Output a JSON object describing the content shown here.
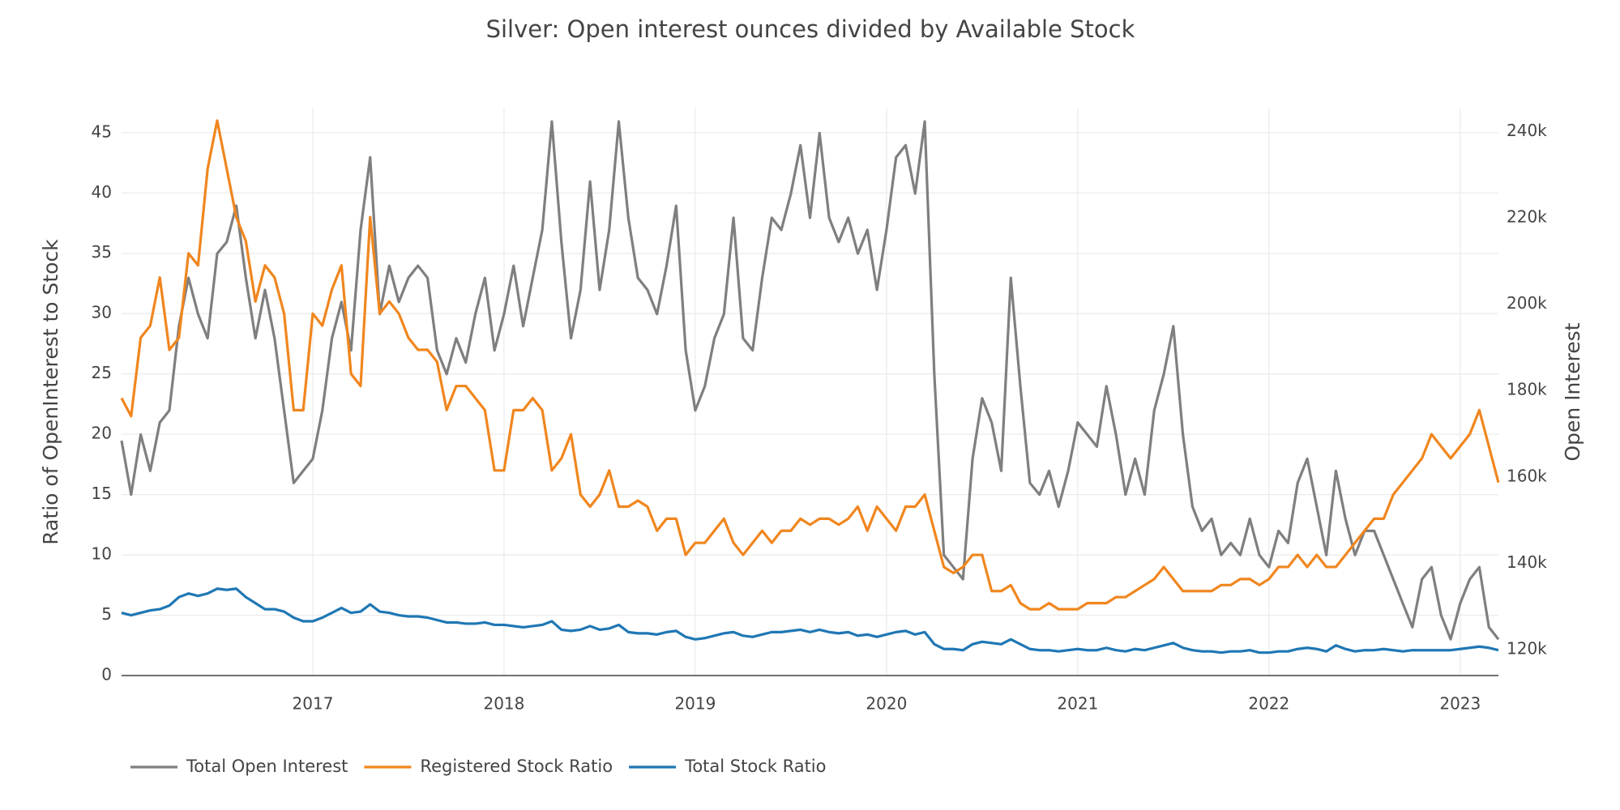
{
  "chart_data": {
    "type": "line",
    "title": "Silver: Open interest ounces divided by Available Stock",
    "ylabel": "Ratio of OpenInterest to Stock",
    "y2label": "Open Interest",
    "legend": "bottom-left",
    "grid": true,
    "xlim": [
      2016,
      2023.2
    ],
    "xticks": [
      2017,
      2018,
      2019,
      2020,
      2021,
      2022,
      2023
    ],
    "ylim": [
      0,
      47
    ],
    "yticks": [
      0,
      5,
      10,
      15,
      20,
      25,
      30,
      35,
      40,
      45
    ],
    "y2lim": [
      114000,
      245300
    ],
    "y2ticks": [
      {
        "value": 120000,
        "label": "120k"
      },
      {
        "value": 140000,
        "label": "140k"
      },
      {
        "value": 160000,
        "label": "160k"
      },
      {
        "value": 180000,
        "label": "180k"
      },
      {
        "value": 200000,
        "label": "200k"
      },
      {
        "value": 220000,
        "label": "220k"
      },
      {
        "value": 240000,
        "label": "240k"
      }
    ],
    "x": [
      2016,
      2016.05,
      2016.1,
      2016.15,
      2016.2,
      2016.25,
      2016.3,
      2016.35,
      2016.4,
      2016.45,
      2016.5,
      2016.55,
      2016.6,
      2016.65,
      2016.7,
      2016.75,
      2016.8,
      2016.85,
      2016.9,
      2016.95,
      2017,
      2017.05,
      2017.1,
      2017.15,
      2017.2,
      2017.25,
      2017.3,
      2017.35,
      2017.4,
      2017.45,
      2017.5,
      2017.55,
      2017.6,
      2017.65,
      2017.7,
      2017.75,
      2017.8,
      2017.85,
      2017.9,
      2017.95,
      2018,
      2018.05,
      2018.1,
      2018.15,
      2018.2,
      2018.25,
      2018.3,
      2018.35,
      2018.4,
      2018.45,
      2018.5,
      2018.55,
      2018.6,
      2018.65,
      2018.7,
      2018.75,
      2018.8,
      2018.85,
      2018.9,
      2018.95,
      2019,
      2019.05,
      2019.1,
      2019.15,
      2019.2,
      2019.25,
      2019.3,
      2019.35,
      2019.4,
      2019.45,
      2019.5,
      2019.55,
      2019.6,
      2019.65,
      2019.7,
      2019.75,
      2019.8,
      2019.85,
      2019.9,
      2019.95,
      2020,
      2020.05,
      2020.1,
      2020.15,
      2020.2,
      2020.25,
      2020.3,
      2020.35,
      2020.4,
      2020.45,
      2020.5,
      2020.55,
      2020.6,
      2020.65,
      2020.7,
      2020.75,
      2020.8,
      2020.85,
      2020.9,
      2020.95,
      2021,
      2021.05,
      2021.1,
      2021.15,
      2021.2,
      2021.25,
      2021.3,
      2021.35,
      2021.4,
      2021.45,
      2021.5,
      2021.55,
      2021.6,
      2021.65,
      2021.7,
      2021.75,
      2021.8,
      2021.85,
      2021.9,
      2021.95,
      2022,
      2022.05,
      2022.1,
      2022.15,
      2022.2,
      2022.25,
      2022.3,
      2022.35,
      2022.4,
      2022.45,
      2022.5,
      2022.55,
      2022.6,
      2022.65,
      2022.7,
      2022.75,
      2022.8,
      2022.85,
      2022.9,
      2022.95,
      2023,
      2023.05,
      2023.1,
      2023.15,
      2023.2
    ],
    "series": [
      {
        "name": "Total Open Interest",
        "color": "#7f7f7f",
        "axis": "y2",
        "values": [
          168400,
          155900,
          169800,
          161400,
          172600,
          175400,
          194900,
          206100,
          197700,
          192100,
          211700,
          214400,
          222800,
          206100,
          192100,
          203300,
          192100,
          175400,
          158600,
          161400,
          164200,
          175400,
          192100,
          200500,
          189300,
          217200,
          234000,
          197700,
          208900,
          200500,
          206100,
          208900,
          206100,
          189300,
          183800,
          192100,
          186500,
          197700,
          206100,
          189300,
          197700,
          208900,
          194900,
          206100,
          217200,
          242300,
          214400,
          192100,
          203300,
          228400,
          203300,
          217200,
          242300,
          220000,
          206100,
          203300,
          197700,
          208900,
          222800,
          189300,
          175400,
          181000,
          192100,
          197700,
          220000,
          192100,
          189300,
          206100,
          220000,
          217200,
          225600,
          236800,
          220000,
          239600,
          220000,
          214400,
          220000,
          211700,
          217200,
          203300,
          217200,
          234000,
          236800,
          225600,
          242300,
          183800,
          141900,
          139100,
          136300,
          164200,
          178200,
          172600,
          161400,
          206100,
          181000,
          158600,
          155900,
          161400,
          153100,
          161400,
          172600,
          169800,
          167000,
          181000,
          169800,
          155900,
          164200,
          155900,
          175400,
          183800,
          194900,
          169800,
          153100,
          147500,
          150300,
          141900,
          144700,
          141900,
          150300,
          141900,
          139100,
          147500,
          144700,
          158600,
          164200,
          153100,
          141900,
          161400,
          150300,
          141900,
          147500,
          147500,
          141900,
          136300,
          130700,
          125200,
          136300,
          139100,
          128000,
          122400,
          130700,
          136300,
          139100,
          125200,
          122400
        ]
      },
      {
        "name": "Registered Stock Ratio",
        "color": "#f0861e",
        "values": [
          23,
          21.5,
          28,
          29,
          33,
          27,
          28,
          35,
          34,
          42,
          46,
          42,
          38,
          36,
          31,
          34,
          33,
          30,
          22,
          22,
          30,
          29,
          32,
          34,
          25,
          24,
          38,
          30,
          31,
          30,
          28,
          27,
          27,
          26,
          22,
          24,
          24,
          23,
          22,
          17,
          17,
          22,
          22,
          23,
          22,
          17,
          18,
          20,
          15,
          14,
          15,
          17,
          14,
          14,
          14.5,
          14,
          12,
          13,
          13,
          10,
          11,
          11,
          12,
          13,
          11,
          10,
          11,
          12,
          11,
          12,
          12,
          13,
          12.5,
          13,
          13,
          12.5,
          13,
          14,
          12,
          14,
          13,
          12,
          14,
          14,
          15,
          12,
          9,
          8.5,
          9,
          10,
          10,
          7,
          7,
          7.5,
          6,
          5.5,
          5.5,
          6,
          5.5,
          5.5,
          5.5,
          6,
          6,
          6,
          6.5,
          6.5,
          7,
          7.5,
          8,
          9,
          8,
          7,
          7,
          7,
          7,
          7.5,
          7.5,
          8,
          8,
          7.5,
          8,
          9,
          9,
          10,
          9,
          10,
          9,
          9,
          10,
          11,
          12,
          13,
          13,
          15,
          16,
          17,
          18,
          20,
          19,
          18,
          19,
          20,
          22,
          19,
          16
        ]
      },
      {
        "name": "Total Stock Ratio",
        "color": "#1f77b4",
        "values": [
          5.2,
          5,
          5.2,
          5.4,
          5.5,
          5.8,
          6.5,
          6.8,
          6.6,
          6.8,
          7.2,
          7.1,
          7.2,
          6.5,
          6,
          5.5,
          5.5,
          5.3,
          4.8,
          4.5,
          4.5,
          4.8,
          5.2,
          5.6,
          5.2,
          5.3,
          5.9,
          5.3,
          5.2,
          5,
          4.9,
          4.9,
          4.8,
          4.6,
          4.4,
          4.4,
          4.3,
          4.3,
          4.4,
          4.2,
          4.2,
          4.1,
          4,
          4.1,
          4.2,
          4.5,
          3.8,
          3.7,
          3.8,
          4.1,
          3.8,
          3.9,
          4.2,
          3.6,
          3.5,
          3.5,
          3.4,
          3.6,
          3.7,
          3.2,
          3,
          3.1,
          3.3,
          3.5,
          3.6,
          3.3,
          3.2,
          3.4,
          3.6,
          3.6,
          3.7,
          3.8,
          3.6,
          3.8,
          3.6,
          3.5,
          3.6,
          3.3,
          3.4,
          3.2,
          3.4,
          3.6,
          3.7,
          3.4,
          3.6,
          2.6,
          2.2,
          2.2,
          2.1,
          2.6,
          2.8,
          2.7,
          2.6,
          3,
          2.6,
          2.2,
          2.1,
          2.1,
          2,
          2.1,
          2.2,
          2.1,
          2.1,
          2.3,
          2.1,
          2,
          2.2,
          2.1,
          2.3,
          2.5,
          2.7,
          2.3,
          2.1,
          2,
          2,
          1.9,
          2,
          2,
          2.1,
          1.9,
          1.9,
          2,
          2,
          2.2,
          2.3,
          2.2,
          2,
          2.5,
          2.2,
          2,
          2.1,
          2.1,
          2.2,
          2.1,
          2,
          2.1,
          2.1,
          2.1,
          2.1,
          2.1,
          2.2,
          2.3,
          2.4,
          2.3,
          2.1
        ]
      }
    ]
  }
}
